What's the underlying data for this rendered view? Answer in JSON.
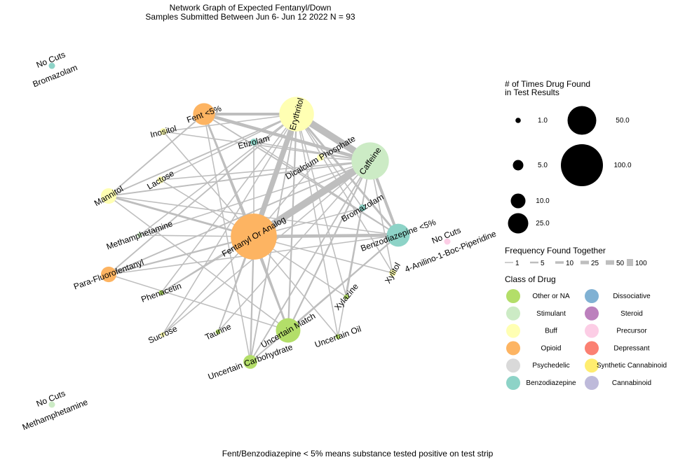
{
  "chart_data": {
    "type": "network",
    "title": "Network Graph of Expected Fentanyl/Down",
    "subtitle": "Samples Submitted Between Jun 6- Jun 12 2022 N = 93",
    "caption": "Fent/Benzodiazepine < 5% means substance tested positive on test strip",
    "colors": {
      "Other or NA": "#b3de69",
      "Stimulant": "#ccebc5",
      "Buff": "#ffffb3",
      "Opioid": "#fdb462",
      "Psychedelic": "#d9d9d9",
      "Benzodiazepine": "#8dd3c7",
      "Dissociative": "#80b1d3",
      "Steroid": "#bc80bd",
      "Precursor": "#fccde5",
      "Depressant": "#fb8072",
      "Synthetic Cannabinoid": "#ffed6f",
      "Cannabinoid": "#bebada",
      "edge": "#bebebe"
    },
    "nodes": [
      {
        "id": "fentanyl",
        "label": "Fentanyl Or Analog",
        "class": "Opioid",
        "count": 88
      },
      {
        "id": "erythritol",
        "label": "Erythritol",
        "class": "Buff",
        "count": 50
      },
      {
        "id": "caffeine",
        "label": "Caffeine",
        "class": "Stimulant",
        "count": 58
      },
      {
        "id": "fent5",
        "label": "Fent <5%",
        "class": "Opioid",
        "count": 20
      },
      {
        "id": "inositol",
        "label": "Inositol",
        "class": "Buff",
        "count": 2
      },
      {
        "id": "etizolam",
        "label": "Etizolam",
        "class": "Benzodiazepine",
        "count": 2
      },
      {
        "id": "dicalcium",
        "label": "Dicalcium Phosphate",
        "class": "Buff",
        "count": 2
      },
      {
        "id": "lactose",
        "label": "Lactose",
        "class": "Buff",
        "count": 2
      },
      {
        "id": "mannitol",
        "label": "Mannitol",
        "class": "Buff",
        "count": 10
      },
      {
        "id": "bromazolam",
        "label": "Bromazolam",
        "class": "Benzodiazepine",
        "count": 2
      },
      {
        "id": "benzo5",
        "label": "Benzodiazepine <5%",
        "class": "Benzodiazepine",
        "count": 22
      },
      {
        "id": "meth",
        "label": "Methamphetamine",
        "class": "Stimulant",
        "count": 1
      },
      {
        "id": "paraf",
        "label": "Para-Fluorofentanyl",
        "class": "Opioid",
        "count": 10
      },
      {
        "id": "xylitol",
        "label": "Xylitol",
        "class": "Buff",
        "count": 2
      },
      {
        "id": "phenacetin",
        "label": "Phenacetin",
        "class": "Other or NA",
        "count": 1
      },
      {
        "id": "xylazine",
        "label": "Xylazine",
        "class": "Other or NA",
        "count": 1
      },
      {
        "id": "sucrose",
        "label": "Sucrose",
        "class": "Buff",
        "count": 1
      },
      {
        "id": "taurine",
        "label": "Taurine",
        "class": "Other or NA",
        "count": 1
      },
      {
        "id": "uncmatch",
        "label": "Uncertain Match",
        "class": "Other or NA",
        "count": 25
      },
      {
        "id": "uncoil",
        "label": "Uncertain Oil",
        "class": "Other or NA",
        "count": 1
      },
      {
        "id": "unccarb",
        "label": "Uncertain Carbohydrate",
        "class": "Other or NA",
        "count": 8
      }
    ],
    "isolated": [
      {
        "id": "nc_broma",
        "label1": "No Cuts",
        "label2": "Bromazolam",
        "class": "Benzodiazepine",
        "count": 1
      },
      {
        "id": "nc_meth",
        "label1": "No Cuts",
        "label2": "Methamphetamine",
        "class": "Stimulant",
        "count": 1
      },
      {
        "id": "nc_anilino",
        "label1": "No Cuts",
        "label2": "4-Anilino-1-Boc-Piperidine",
        "class": "Precursor",
        "count": 1
      }
    ],
    "edges": [
      [
        "fentanyl",
        "caffeine",
        25
      ],
      [
        "fentanyl",
        "erythritol",
        18
      ],
      [
        "erythritol",
        "caffeine",
        30
      ],
      [
        "fent5",
        "erythritol",
        8
      ],
      [
        "fent5",
        "caffeine",
        10
      ],
      [
        "fentanyl",
        "benzo5",
        10
      ],
      [
        "benzo5",
        "caffeine",
        8
      ],
      [
        "benzo5",
        "erythritol",
        5
      ],
      [
        "fentanyl",
        "uncmatch",
        5
      ],
      [
        "fentanyl",
        "fent5",
        5
      ],
      [
        "fentanyl",
        "mannitol",
        5
      ],
      [
        "fentanyl",
        "paraf",
        3
      ],
      [
        "uncmatch",
        "erythritol",
        3
      ],
      [
        "uncmatch",
        "caffeine",
        3
      ],
      [
        "uncmatch",
        "benzo5",
        3
      ],
      [
        "unccarb",
        "fentanyl",
        3
      ],
      [
        "unccarb",
        "erythritol",
        2
      ],
      [
        "unccarb",
        "caffeine",
        2
      ],
      [
        "fent5",
        "mannitol",
        2
      ],
      [
        "fent5",
        "benzo5",
        2
      ],
      [
        "mannitol",
        "caffeine",
        2
      ],
      [
        "mannitol",
        "erythritol",
        2
      ],
      [
        "paraf",
        "erythritol",
        2
      ],
      [
        "paraf",
        "caffeine",
        2
      ],
      [
        "inositol",
        "fentanyl",
        1
      ],
      [
        "inositol",
        "caffeine",
        1
      ],
      [
        "etizolam",
        "fentanyl",
        1
      ],
      [
        "etizolam",
        "benzo5",
        1
      ],
      [
        "dicalcium",
        "fentanyl",
        1
      ],
      [
        "dicalcium",
        "caffeine",
        1
      ],
      [
        "lactose",
        "fentanyl",
        1
      ],
      [
        "lactose",
        "erythritol",
        1
      ],
      [
        "bromazolam",
        "fentanyl",
        1
      ],
      [
        "bromazolam",
        "erythritol",
        1
      ],
      [
        "meth",
        "fentanyl",
        1
      ],
      [
        "meth",
        "caffeine",
        1
      ],
      [
        "xylitol",
        "fentanyl",
        1
      ],
      [
        "xylitol",
        "erythritol",
        1
      ],
      [
        "phenacetin",
        "fentanyl",
        1
      ],
      [
        "phenacetin",
        "caffeine",
        1
      ],
      [
        "xylazine",
        "fentanyl",
        1
      ],
      [
        "xylazine",
        "erythritol",
        1
      ],
      [
        "sucrose",
        "fentanyl",
        1
      ],
      [
        "sucrose",
        "caffeine",
        1
      ],
      [
        "taurine",
        "fentanyl",
        1
      ],
      [
        "taurine",
        "erythritol",
        1
      ],
      [
        "uncoil",
        "fentanyl",
        1
      ],
      [
        "uncoil",
        "caffeine",
        1
      ],
      [
        "unccarb",
        "benzo5",
        1
      ],
      [
        "unccarb",
        "uncmatch",
        1
      ],
      [
        "mannitol",
        "benzo5",
        1
      ],
      [
        "paraf",
        "benzo5",
        1
      ],
      [
        "paraf",
        "uncmatch",
        1
      ],
      [
        "mannitol",
        "uncmatch",
        1
      ],
      [
        "fent5",
        "uncmatch",
        1
      ],
      [
        "fent5",
        "unccarb",
        1
      ],
      [
        "lactose",
        "caffeine",
        1
      ],
      [
        "phenacetin",
        "erythritol",
        1
      ],
      [
        "sucrose",
        "erythritol",
        1
      ],
      [
        "taurine",
        "caffeine",
        1
      ],
      [
        "xylazine",
        "caffeine",
        1
      ],
      [
        "uncoil",
        "erythritol",
        1
      ],
      [
        "xylitol",
        "caffeine",
        1
      ],
      [
        "meth",
        "erythritol",
        1
      ],
      [
        "inositol",
        "erythritol",
        1
      ],
      [
        "etizolam",
        "caffeine",
        1
      ]
    ],
    "legend": {
      "size_title_1": "# of Times Drug Found",
      "size_title_2": "in Test Results",
      "size_values": [
        1.0,
        5.0,
        10.0,
        25.0,
        50.0,
        100.0
      ],
      "size_labels": [
        "1.0",
        "5.0",
        "10.0",
        "25.0",
        "50.0",
        "100.0"
      ],
      "edge_title": "Frequency Found Together",
      "edge_values": [
        1,
        5,
        10,
        25,
        50,
        100
      ],
      "edge_labels": [
        "1",
        "5",
        "10",
        "25",
        "50",
        "100"
      ],
      "class_title": "Class of Drug",
      "classes": [
        "Other or NA",
        "Stimulant",
        "Buff",
        "Opioid",
        "Psychedelic",
        "Benzodiazepine",
        "Dissociative",
        "Steroid",
        "Precursor",
        "Depressant",
        "Synthetic Cannabinoid",
        "Cannabinoid"
      ]
    }
  }
}
